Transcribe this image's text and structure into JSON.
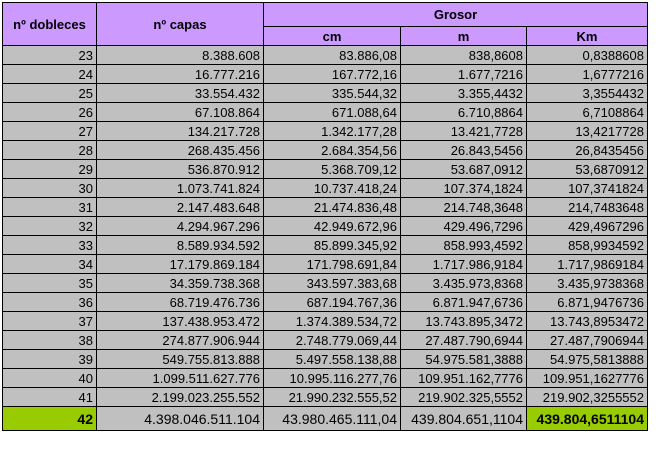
{
  "headers": {
    "dobleces": "nº dobleces",
    "capas": "nº capas",
    "grosor": "Grosor",
    "cm": "cm",
    "m": "m",
    "km": "Km"
  },
  "rows": [
    {
      "dobleces": "23",
      "capas": "8.388.608",
      "cm": "83.886,08",
      "m": "838,8608",
      "km": "0,8388608"
    },
    {
      "dobleces": "24",
      "capas": "16.777.216",
      "cm": "167.772,16",
      "m": "1.677,7216",
      "km": "1,6777216"
    },
    {
      "dobleces": "25",
      "capas": "33.554.432",
      "cm": "335.544,32",
      "m": "3.355,4432",
      "km": "3,3554432"
    },
    {
      "dobleces": "26",
      "capas": "67.108.864",
      "cm": "671.088,64",
      "m": "6.710,8864",
      "km": "6,7108864"
    },
    {
      "dobleces": "27",
      "capas": "134.217.728",
      "cm": "1.342.177,28",
      "m": "13.421,7728",
      "km": "13,4217728"
    },
    {
      "dobleces": "28",
      "capas": "268.435.456",
      "cm": "2.684.354,56",
      "m": "26.843,5456",
      "km": "26,8435456"
    },
    {
      "dobleces": "29",
      "capas": "536.870.912",
      "cm": "5.368.709,12",
      "m": "53.687,0912",
      "km": "53,6870912"
    },
    {
      "dobleces": "30",
      "capas": "1.073.741.824",
      "cm": "10.737.418,24",
      "m": "107.374,1824",
      "km": "107,3741824"
    },
    {
      "dobleces": "31",
      "capas": "2.147.483.648",
      "cm": "21.474.836,48",
      "m": "214.748,3648",
      "km": "214,7483648"
    },
    {
      "dobleces": "32",
      "capas": "4.294.967.296",
      "cm": "42.949.672,96",
      "m": "429.496,7296",
      "km": "429,4967296"
    },
    {
      "dobleces": "33",
      "capas": "8.589.934.592",
      "cm": "85.899.345,92",
      "m": "858.993,4592",
      "km": "858,9934592"
    },
    {
      "dobleces": "34",
      "capas": "17.179.869.184",
      "cm": "171.798.691,84",
      "m": "1.717.986,9184",
      "km": "1.717,9869184"
    },
    {
      "dobleces": "35",
      "capas": "34.359.738.368",
      "cm": "343.597.383,68",
      "m": "3.435.973,8368",
      "km": "3.435,9738368"
    },
    {
      "dobleces": "36",
      "capas": "68.719.476.736",
      "cm": "687.194.767,36",
      "m": "6.871.947,6736",
      "km": "6.871,9476736"
    },
    {
      "dobleces": "37",
      "capas": "137.438.953.472",
      "cm": "1.374.389.534,72",
      "m": "13.743.895,3472",
      "km": "13.743,8953472"
    },
    {
      "dobleces": "38",
      "capas": "274.877.906.944",
      "cm": "2.748.779.069,44",
      "m": "27.487.790,6944",
      "km": "27.487,7906944"
    },
    {
      "dobleces": "39",
      "capas": "549.755.813.888",
      "cm": "5.497.558.138,88",
      "m": "54.975.581,3888",
      "km": "54.975,5813888"
    },
    {
      "dobleces": "40",
      "capas": "1.099.511.627.776",
      "cm": "10.995.116.277,76",
      "m": "109.951.162,7776",
      "km": "109.951,1627776"
    },
    {
      "dobleces": "41",
      "capas": "2.199.023.255.552",
      "cm": "21.990.232.555,52",
      "m": "219.902.325,5552",
      "km": "219.902,3255552"
    },
    {
      "dobleces": "42",
      "capas": "4.398.046.511.104",
      "cm": "43.980.465.111,04",
      "m": "439.804.651,1104",
      "km": "439.804,6511104"
    }
  ],
  "colors": {
    "header_bg": "#cc99ff",
    "cell_bg": "#c0c0c0",
    "highlight_bg": "#99cc00"
  }
}
